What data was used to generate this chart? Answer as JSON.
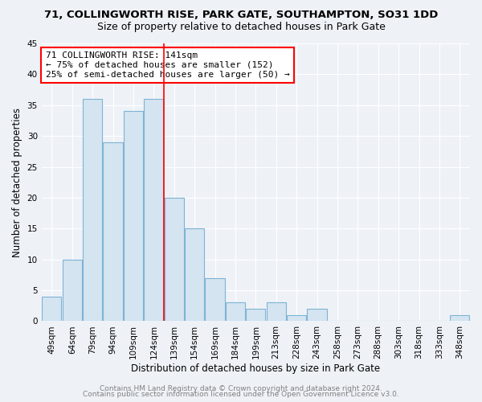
{
  "title_line1": "71, COLLINGWORTH RISE, PARK GATE, SOUTHAMPTON, SO31 1DD",
  "title_line2": "Size of property relative to detached houses in Park Gate",
  "xlabel": "Distribution of detached houses by size in Park Gate",
  "ylabel": "Number of detached properties",
  "categories": [
    "49sqm",
    "64sqm",
    "79sqm",
    "94sqm",
    "109sqm",
    "124sqm",
    "139sqm",
    "154sqm",
    "169sqm",
    "184sqm",
    "199sqm",
    "213sqm",
    "228sqm",
    "243sqm",
    "258sqm",
    "273sqm",
    "288sqm",
    "303sqm",
    "318sqm",
    "333sqm",
    "348sqm"
  ],
  "values": [
    4,
    10,
    36,
    29,
    34,
    36,
    20,
    15,
    7,
    3,
    2,
    3,
    1,
    2,
    0,
    0,
    0,
    0,
    0,
    0,
    1
  ],
  "bar_color": "#d4e4f0",
  "bar_edge_color": "#7eb3d4",
  "red_line_index": 6,
  "annotation_text": "71 COLLINGWORTH RISE: 141sqm\n← 75% of detached houses are smaller (152)\n25% of semi-detached houses are larger (50) →",
  "annotation_box_color": "white",
  "annotation_box_edge_color": "red",
  "ylim": [
    0,
    45
  ],
  "yticks": [
    0,
    5,
    10,
    15,
    20,
    25,
    30,
    35,
    40,
    45
  ],
  "footer_line1": "Contains HM Land Registry data © Crown copyright and database right 2024.",
  "footer_line2": "Contains public sector information licensed under the Open Government Licence v3.0.",
  "bg_color": "#eef2f7",
  "grid_color": "#ffffff",
  "title_fontsize": 9.5,
  "subtitle_fontsize": 9,
  "axis_label_fontsize": 8.5,
  "tick_fontsize": 7.5,
  "annotation_fontsize": 8,
  "footer_fontsize": 6.5
}
